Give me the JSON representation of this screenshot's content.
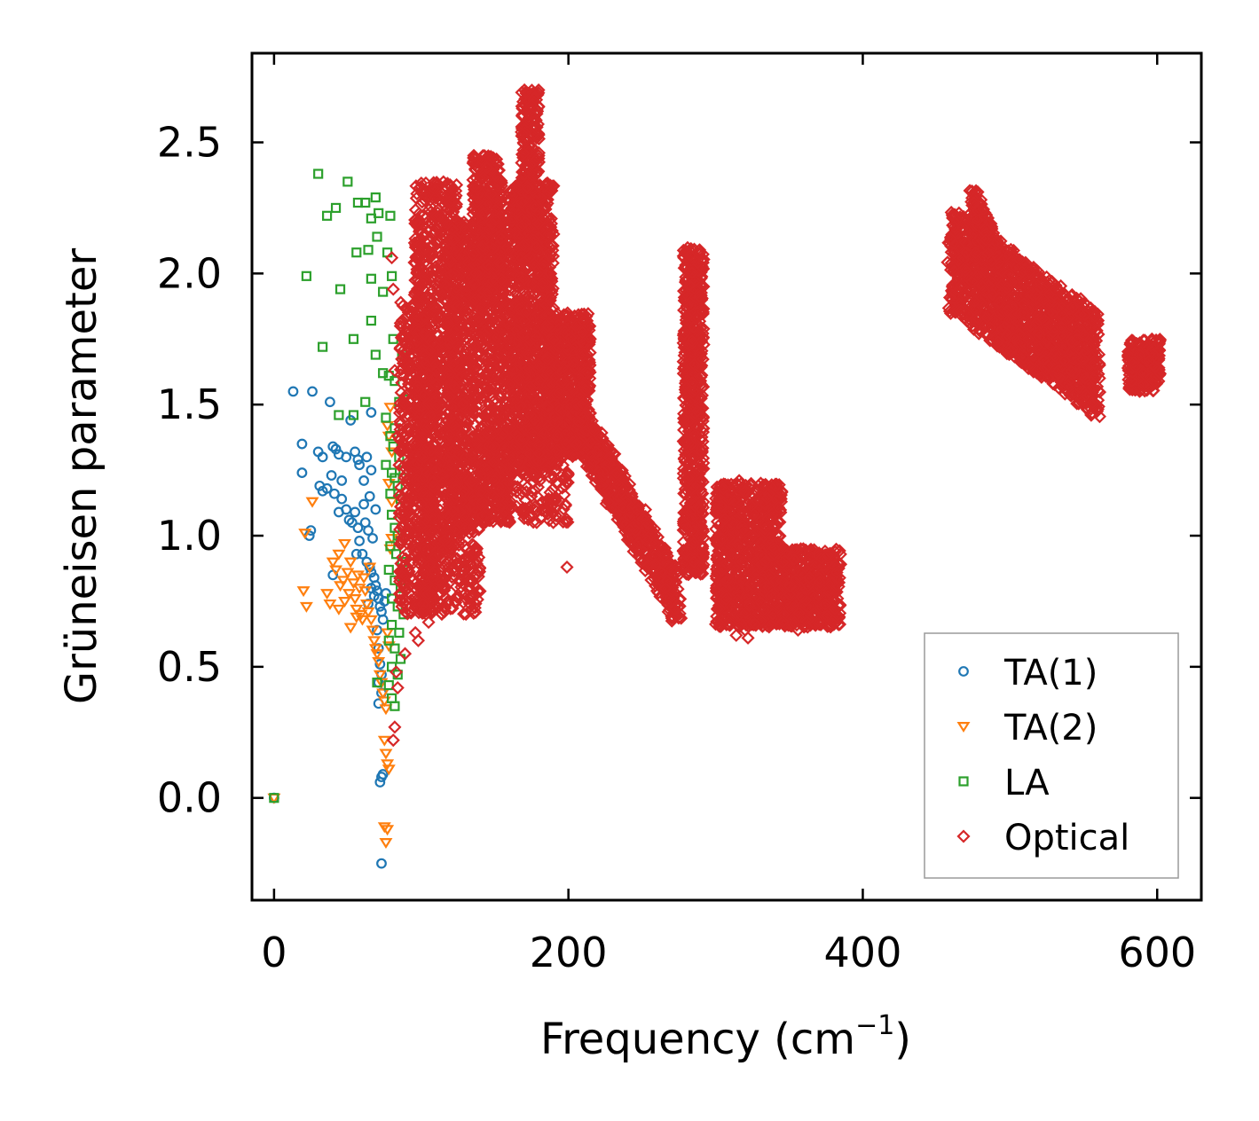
{
  "chart_data": {
    "type": "scatter",
    "title": "",
    "xlabel": "Frequency (cm",
    "xlabel_sup": "−1",
    "xlabel_close": ")",
    "ylabel": "Grüneisen parameter",
    "xlim": [
      -15,
      630
    ],
    "ylim": [
      -0.39,
      2.84
    ],
    "x_ticks": [
      0,
      200,
      400,
      600
    ],
    "x_tick_labels": [
      "0",
      "200",
      "400",
      "600"
    ],
    "y_ticks": [
      0.0,
      0.5,
      1.0,
      1.5,
      2.0,
      2.5
    ],
    "y_tick_labels": [
      "0.0",
      "0.5",
      "1.0",
      "1.5",
      "2.0",
      "2.5"
    ],
    "grid": false,
    "legend_position": "bottom-right",
    "series": [
      {
        "name": "TA(1)",
        "label": "TA(1)",
        "marker": "circle",
        "color": "#1f77b4",
        "points": [
          [
            0,
            0.0
          ],
          [
            13,
            1.55
          ],
          [
            26,
            1.55
          ],
          [
            19,
            1.35
          ],
          [
            19,
            1.24
          ],
          [
            38,
            1.51
          ],
          [
            30,
            1.32
          ],
          [
            33,
            1.3
          ],
          [
            31,
            1.19
          ],
          [
            33,
            1.17
          ],
          [
            39,
            1.23
          ],
          [
            40,
            1.34
          ],
          [
            42,
            1.33
          ],
          [
            44,
            1.31
          ],
          [
            46,
            1.21
          ],
          [
            49,
            1.3
          ],
          [
            52,
            1.44
          ],
          [
            55,
            1.32
          ],
          [
            57,
            1.29
          ],
          [
            58,
            1.27
          ],
          [
            61,
            1.21
          ],
          [
            63,
            1.3
          ],
          [
            66,
            1.47
          ],
          [
            66,
            1.25
          ],
          [
            36,
            1.18
          ],
          [
            41,
            1.16
          ],
          [
            44,
            1.09
          ],
          [
            46,
            1.14
          ],
          [
            49,
            1.1
          ],
          [
            51,
            1.06
          ],
          [
            53,
            1.05
          ],
          [
            55,
            1.09
          ],
          [
            57,
            1.03
          ],
          [
            58,
            0.98
          ],
          [
            61,
            1.12
          ],
          [
            62,
            1.05
          ],
          [
            64,
            1.02
          ],
          [
            65,
            1.15
          ],
          [
            67,
            0.99
          ],
          [
            69,
            1.1
          ],
          [
            60,
            0.93
          ],
          [
            63,
            0.9
          ],
          [
            65,
            0.88
          ],
          [
            66,
            0.86
          ],
          [
            68,
            0.84
          ],
          [
            69,
            0.81
          ],
          [
            70,
            0.79
          ],
          [
            71,
            0.76
          ],
          [
            72,
            0.73
          ],
          [
            73,
            0.71
          ],
          [
            74,
            0.68
          ],
          [
            75,
            0.75
          ],
          [
            76,
            0.78
          ],
          [
            66,
            0.8
          ],
          [
            68,
            0.77
          ],
          [
            70,
            0.64
          ],
          [
            71,
            0.57
          ],
          [
            72,
            0.51
          ],
          [
            73,
            0.47
          ],
          [
            71,
            0.44
          ],
          [
            73,
            0.4
          ],
          [
            71,
            0.36
          ],
          [
            73,
            0.08
          ],
          [
            74,
            0.09
          ],
          [
            72,
            0.06
          ],
          [
            73,
            -0.25
          ],
          [
            25,
            1.02
          ],
          [
            24,
            1.0
          ],
          [
            40,
            0.85
          ],
          [
            56,
            0.93
          ],
          [
            64,
            0.74
          ]
        ]
      },
      {
        "name": "TA(2)",
        "label": "TA(2)",
        "marker": "triangle-down",
        "color": "#ff7f0e",
        "points": [
          [
            0,
            0.0
          ],
          [
            26,
            1.13
          ],
          [
            21,
            1.01
          ],
          [
            20,
            0.79
          ],
          [
            22,
            0.73
          ],
          [
            36,
            0.78
          ],
          [
            38,
            0.74
          ],
          [
            40,
            0.9
          ],
          [
            42,
            0.87
          ],
          [
            44,
            0.72
          ],
          [
            45,
            0.81
          ],
          [
            47,
            0.83
          ],
          [
            48,
            0.75
          ],
          [
            50,
            0.86
          ],
          [
            51,
            0.78
          ],
          [
            52,
            0.9
          ],
          [
            54,
            0.82
          ],
          [
            55,
            0.76
          ],
          [
            56,
            0.72
          ],
          [
            57,
            0.85
          ],
          [
            58,
            0.8
          ],
          [
            59,
            0.7
          ],
          [
            60,
            0.68
          ],
          [
            61,
            0.84
          ],
          [
            62,
            0.79
          ],
          [
            63,
            0.74
          ],
          [
            64,
            0.71
          ],
          [
            65,
            0.88
          ],
          [
            66,
            0.68
          ],
          [
            67,
            0.64
          ],
          [
            68,
            0.6
          ],
          [
            69,
            0.57
          ],
          [
            70,
            0.55
          ],
          [
            71,
            0.52
          ],
          [
            72,
            0.47
          ],
          [
            73,
            0.44
          ],
          [
            74,
            0.4
          ],
          [
            75,
            0.37
          ],
          [
            76,
            0.34
          ],
          [
            77,
            0.63
          ],
          [
            78,
            0.58
          ],
          [
            79,
            0.95
          ],
          [
            80,
            0.99
          ],
          [
            79,
            1.49
          ],
          [
            77,
            1.42
          ],
          [
            78,
            1.38
          ],
          [
            80,
            1.32
          ],
          [
            78,
            1.2
          ],
          [
            80,
            1.13
          ],
          [
            75,
            0.22
          ],
          [
            76,
            0.17
          ],
          [
            77,
            0.13
          ],
          [
            78,
            0.11
          ],
          [
            75,
            -0.11
          ],
          [
            77,
            -0.12
          ],
          [
            76,
            -0.17
          ],
          [
            44,
            0.93
          ],
          [
            48,
            0.97
          ],
          [
            52,
            0.65
          ],
          [
            56,
            0.69
          ]
        ]
      },
      {
        "name": "LA",
        "label": "LA",
        "marker": "square",
        "color": "#2ca02c",
        "points": [
          [
            0,
            0.0
          ],
          [
            30,
            2.38
          ],
          [
            36,
            2.22
          ],
          [
            42,
            2.25
          ],
          [
            50,
            2.35
          ],
          [
            57,
            2.27
          ],
          [
            62,
            2.27
          ],
          [
            69,
            2.29
          ],
          [
            71,
            2.23
          ],
          [
            66,
            2.21
          ],
          [
            79,
            2.22
          ],
          [
            70,
            2.14
          ],
          [
            56,
            2.08
          ],
          [
            64,
            2.09
          ],
          [
            77,
            2.08
          ],
          [
            22,
            1.99
          ],
          [
            45,
            1.94
          ],
          [
            66,
            1.98
          ],
          [
            80,
            1.99
          ],
          [
            74,
            1.93
          ],
          [
            66,
            1.82
          ],
          [
            33,
            1.72
          ],
          [
            54,
            1.75
          ],
          [
            81,
            1.75
          ],
          [
            69,
            1.69
          ],
          [
            74,
            1.62
          ],
          [
            87,
            1.69
          ],
          [
            78,
            1.61
          ],
          [
            82,
            1.59
          ],
          [
            44,
            1.46
          ],
          [
            54,
            1.46
          ],
          [
            62,
            1.51
          ],
          [
            85,
            1.51
          ],
          [
            88,
            1.52
          ],
          [
            76,
            1.45
          ],
          [
            82,
            1.41
          ],
          [
            79,
            1.38
          ],
          [
            81,
            1.34
          ],
          [
            85,
            1.3
          ],
          [
            76,
            1.27
          ],
          [
            80,
            1.24
          ],
          [
            82,
            1.22
          ],
          [
            84,
            1.19
          ],
          [
            79,
            1.16
          ],
          [
            86,
            1.14
          ],
          [
            88,
            1.25
          ],
          [
            80,
            1.08
          ],
          [
            82,
            1.03
          ],
          [
            84,
            1.0
          ],
          [
            86,
            0.98
          ],
          [
            79,
            0.96
          ],
          [
            83,
            0.93
          ],
          [
            87,
            0.9
          ],
          [
            78,
            0.87
          ],
          [
            82,
            0.83
          ],
          [
            86,
            0.8
          ],
          [
            80,
            0.76
          ],
          [
            84,
            0.73
          ],
          [
            88,
            0.7
          ],
          [
            80,
            0.66
          ],
          [
            85,
            0.63
          ],
          [
            78,
            0.6
          ],
          [
            82,
            0.57
          ],
          [
            86,
            0.53
          ],
          [
            80,
            0.5
          ],
          [
            84,
            0.47
          ],
          [
            70,
            0.44
          ],
          [
            78,
            0.43
          ],
          [
            80,
            0.38
          ],
          [
            82,
            0.35
          ]
        ]
      },
      {
        "name": "Optical",
        "label": "Optical",
        "marker": "diamond",
        "color": "#d62728",
        "points": [
          [
            80,
            2.06
          ],
          [
            81,
            1.94
          ],
          [
            82,
            1.63
          ],
          [
            84,
            1.38
          ],
          [
            85,
            1.27
          ],
          [
            86,
            1.11
          ],
          [
            87,
            0.98
          ],
          [
            88,
            0.82
          ],
          [
            84,
            0.42
          ],
          [
            82,
            0.27
          ],
          [
            81,
            0.22
          ],
          [
            83,
            0.48
          ],
          [
            89,
            0.55
          ],
          [
            96,
            0.63
          ],
          [
            106,
            0.72
          ],
          [
            101,
            0.84
          ],
          [
            103,
            0.76
          ],
          [
            98,
            0.6
          ],
          [
            105,
            0.67
          ],
          [
            110,
            0.95
          ],
          [
            199,
            0.88
          ],
          [
            316,
            1.21
          ],
          [
            314,
            0.62
          ],
          [
            320,
            0.64
          ],
          [
            322,
            0.61
          ],
          [
            356,
            0.64
          ],
          [
            360,
            0.66
          ]
        ],
        "clusters": [
          {
            "x_range": [
              85,
              110
            ],
            "y_range": [
              0.7,
              1.9
            ],
            "count": 600
          },
          {
            "x_range": [
              95,
              125
            ],
            "y_range": [
              1.2,
              2.35
            ],
            "count": 700
          },
          {
            "x_range": [
              118,
              160
            ],
            "y_range": [
              1.05,
              2.2
            ],
            "count": 1100
          },
          {
            "x_range": [
              135,
              155
            ],
            "y_range": [
              1.9,
              2.45
            ],
            "count": 400
          },
          {
            "x_range": [
              160,
              190
            ],
            "y_range": [
              1.25,
              2.35
            ],
            "count": 1100
          },
          {
            "x_range": [
              168,
              180
            ],
            "y_range": [
              2.1,
              2.7
            ],
            "count": 250
          },
          {
            "x_range": [
              185,
              215
            ],
            "y_range": [
              1.3,
              1.85
            ],
            "count": 600
          },
          {
            "x_range": [
              100,
              140
            ],
            "y_range": [
              0.7,
              1.25
            ],
            "count": 400
          },
          {
            "x_range": [
              140,
              200
            ],
            "y_range": [
              1.05,
              1.4
            ],
            "count": 300
          },
          {
            "x_range": [
              278,
              292
            ],
            "y_range": [
              0.85,
              2.1
            ],
            "count": 700
          },
          {
            "x_range": [
              300,
              345
            ],
            "y_range": [
              0.65,
              1.2
            ],
            "count": 900
          },
          {
            "x_range": [
              345,
              385
            ],
            "y_range": [
              0.65,
              0.95
            ],
            "count": 500
          },
          {
            "x_range": [
              580,
              602
            ],
            "y_range": [
              1.55,
              1.75
            ],
            "count": 250
          }
        ],
        "lines": [
          {
            "from": [
              205,
              1.45
            ],
            "to": [
              275,
              0.75
            ],
            "spread": 0.1,
            "count": 700
          },
          {
            "from": [
              460,
              2.05
            ],
            "to": [
              560,
              1.65
            ],
            "spread": 0.2,
            "count": 1600
          },
          {
            "from": [
              475,
              2.28
            ],
            "to": [
              490,
              2.08
            ],
            "spread": 0.05,
            "count": 150
          }
        ]
      }
    ]
  }
}
